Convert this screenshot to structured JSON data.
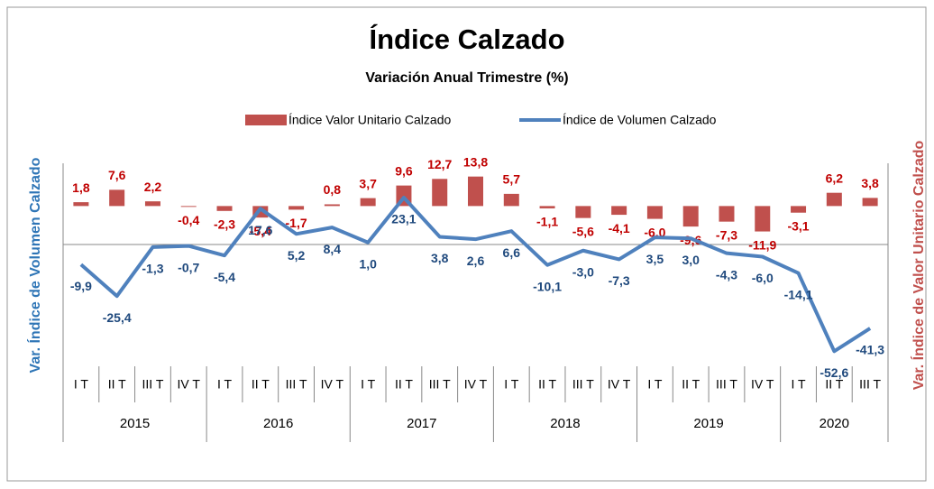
{
  "chart_data": {
    "type": "bar_line",
    "title": "Índice Calzado",
    "subtitle": "Variación Anual Trimestre  (%)",
    "y_label": "Var. Índice de Volumen Calzado",
    "y2_label": "Var. Índice de Valor Unitario Calzado",
    "categories": [
      "I T",
      "II T",
      "III T",
      "IV T",
      "I T",
      "II T",
      "III T",
      "IV T",
      "I T",
      "II T",
      "III T",
      "IV T",
      "I T",
      "II T",
      "III T",
      "IV T",
      "I T",
      "II T",
      "III T",
      "IV T",
      "I T",
      "II T",
      "III T"
    ],
    "groups": [
      "2015",
      "2016",
      "2017",
      "2018",
      "2019",
      "2020"
    ],
    "ylim": [
      -60,
      40
    ],
    "y2lim": [
      -75,
      20
    ],
    "series": [
      {
        "name": "Índice Valor Unitario Calzado",
        "type": "bar",
        "axis": "y2",
        "color": "#c0504d",
        "values": [
          1.8,
          7.6,
          2.2,
          -0.4,
          -2.3,
          -5.4,
          -1.7,
          0.8,
          3.7,
          9.6,
          12.7,
          13.8,
          5.7,
          -1.1,
          -5.6,
          -4.1,
          -6.0,
          -9.6,
          -7.3,
          -11.9,
          -3.1,
          6.2,
          3.8
        ],
        "value_labels": [
          "1,8",
          "7,6",
          "2,2",
          "-0,4",
          "-2,3",
          "-5,4",
          "-1,7",
          "0,8",
          "3,7",
          "9,6",
          "12,7",
          "13,8",
          "5,7",
          "-1,1",
          "-5,6",
          "-4,1",
          "-6,0",
          "-9,6",
          "-7,3",
          "-11,9",
          "-3,1",
          "6,2",
          "3,8"
        ]
      },
      {
        "name": "Índice de Volumen Calzado",
        "type": "line",
        "axis": "y",
        "color": "#4f81bd",
        "values": [
          -9.9,
          -25.4,
          -1.3,
          -0.7,
          -5.4,
          17.6,
          5.2,
          8.4,
          1.0,
          23.1,
          3.8,
          2.6,
          6.6,
          -10.1,
          -3.0,
          -7.3,
          3.5,
          3.0,
          -4.3,
          -6.0,
          -14.1,
          -52.6,
          -41.3
        ],
        "value_labels": [
          "-9,9",
          "-25,4",
          "-1,3",
          "-0,7",
          "-5,4",
          "17,6",
          "5,2",
          "8,4",
          "1,0",
          "23,1",
          "3,8",
          "2,6",
          "6,6",
          "-10,1",
          "-3,0",
          "-7,3",
          "3,5",
          "3,0",
          "-4,3",
          "-6,0",
          "-14,1",
          "-52,6",
          "-41,3"
        ]
      }
    ]
  }
}
